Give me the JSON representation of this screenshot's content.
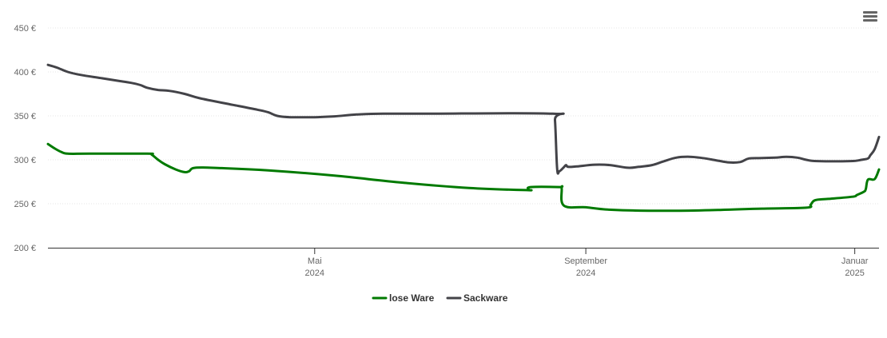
{
  "chart_data": {
    "type": "line",
    "y_axis": {
      "range": [
        200,
        450
      ],
      "ticks": [
        200,
        250,
        300,
        350,
        400,
        450
      ],
      "tick_labels": [
        "200 €",
        "250 €",
        "300 €",
        "350 €",
        "400 €",
        "450 €"
      ]
    },
    "x_axis": {
      "range": [
        "2024-01-01",
        "2025-01-12"
      ],
      "ticks": [
        {
          "date": "2024-05-01",
          "month": "Mai",
          "year": "2024"
        },
        {
          "date": "2024-09-01",
          "month": "September",
          "year": "2024"
        },
        {
          "date": "2025-01-01",
          "month": "Januar",
          "year": "2025"
        }
      ]
    },
    "grid": "horizontal",
    "legend_position": "bottom-center",
    "series": [
      {
        "name": "lose Ware",
        "color": "#007a00",
        "points": [
          [
            "2024-01-01",
            318
          ],
          [
            "2024-01-04",
            313
          ],
          [
            "2024-01-07",
            309
          ],
          [
            "2024-01-10",
            307
          ],
          [
            "2024-01-20",
            307
          ],
          [
            "2024-02-15",
            307
          ],
          [
            "2024-02-17",
            306
          ],
          [
            "2024-02-20",
            300
          ],
          [
            "2024-02-23",
            295
          ],
          [
            "2024-02-28",
            289
          ],
          [
            "2024-03-03",
            286
          ],
          [
            "2024-03-05",
            287
          ],
          [
            "2024-03-08",
            291
          ],
          [
            "2024-03-20",
            290.5
          ],
          [
            "2024-04-10",
            288
          ],
          [
            "2024-05-10",
            282
          ],
          [
            "2024-06-10",
            274
          ],
          [
            "2024-07-10",
            268
          ],
          [
            "2024-08-05",
            265.5
          ],
          [
            "2024-08-06",
            266
          ],
          [
            "2024-08-07",
            269
          ],
          [
            "2024-08-20",
            269
          ],
          [
            "2024-08-21",
            268
          ],
          [
            "2024-08-22",
            248
          ],
          [
            "2024-09-01",
            246
          ],
          [
            "2024-09-10",
            243.5
          ],
          [
            "2024-09-20",
            242.5
          ],
          [
            "2024-10-10",
            242
          ],
          [
            "2024-11-01",
            243
          ],
          [
            "2024-11-20",
            244.5
          ],
          [
            "2024-12-10",
            245.5
          ],
          [
            "2024-12-12",
            249
          ],
          [
            "2024-12-14",
            254
          ],
          [
            "2024-12-20",
            255.5
          ],
          [
            "2024-12-31",
            258
          ],
          [
            "2025-01-02",
            260
          ],
          [
            "2025-01-05",
            263.5
          ],
          [
            "2025-01-06",
            266.5
          ],
          [
            "2025-01-07",
            277.5
          ],
          [
            "2025-01-10",
            278
          ],
          [
            "2025-01-12",
            289
          ]
        ]
      },
      {
        "name": "Sackware",
        "color": "#434348",
        "points": [
          [
            "2024-01-01",
            408
          ],
          [
            "2024-01-05",
            405
          ],
          [
            "2024-01-10",
            400
          ],
          [
            "2024-01-16",
            396.5
          ],
          [
            "2024-01-25",
            393
          ],
          [
            "2024-02-03",
            389.5
          ],
          [
            "2024-02-08",
            387.5
          ],
          [
            "2024-02-12",
            385
          ],
          [
            "2024-02-15",
            382
          ],
          [
            "2024-02-20",
            379.5
          ],
          [
            "2024-02-25",
            378.5
          ],
          [
            "2024-03-03",
            375
          ],
          [
            "2024-03-10",
            370
          ],
          [
            "2024-03-25",
            362.5
          ],
          [
            "2024-04-05",
            357
          ],
          [
            "2024-04-10",
            354
          ],
          [
            "2024-04-14",
            350
          ],
          [
            "2024-04-20",
            348.5
          ],
          [
            "2024-05-01",
            348.5
          ],
          [
            "2024-05-10",
            349.5
          ],
          [
            "2024-05-20",
            351.5
          ],
          [
            "2024-06-01",
            352.5
          ],
          [
            "2024-06-20",
            352.5
          ],
          [
            "2024-08-17",
            352.5
          ],
          [
            "2024-08-18",
            345
          ],
          [
            "2024-08-19",
            290
          ],
          [
            "2024-08-20",
            287
          ],
          [
            "2024-08-22",
            291.5
          ],
          [
            "2024-08-23",
            294
          ],
          [
            "2024-08-24",
            292
          ],
          [
            "2024-08-28",
            292.5
          ],
          [
            "2024-09-05",
            294.5
          ],
          [
            "2024-09-12",
            294
          ],
          [
            "2024-09-20",
            291
          ],
          [
            "2024-09-25",
            292
          ],
          [
            "2024-10-01",
            294
          ],
          [
            "2024-10-06",
            298
          ],
          [
            "2024-10-12",
            302.5
          ],
          [
            "2024-10-18",
            303.5
          ],
          [
            "2024-10-24",
            302
          ],
          [
            "2024-10-30",
            299.5
          ],
          [
            "2024-11-05",
            297
          ],
          [
            "2024-11-10",
            297.5
          ],
          [
            "2024-11-14",
            301.5
          ],
          [
            "2024-11-20",
            302
          ],
          [
            "2024-11-26",
            302.5
          ],
          [
            "2024-12-01",
            303.5
          ],
          [
            "2024-12-06",
            302.5
          ],
          [
            "2024-12-10",
            300
          ],
          [
            "2024-12-15",
            298.5
          ],
          [
            "2024-12-30",
            298.5
          ],
          [
            "2025-01-04",
            300
          ],
          [
            "2025-01-07",
            301.5
          ],
          [
            "2025-01-08",
            305
          ],
          [
            "2025-01-10",
            312
          ],
          [
            "2025-01-12",
            326
          ]
        ]
      }
    ]
  },
  "menu_icon": "hamburger-menu-icon"
}
